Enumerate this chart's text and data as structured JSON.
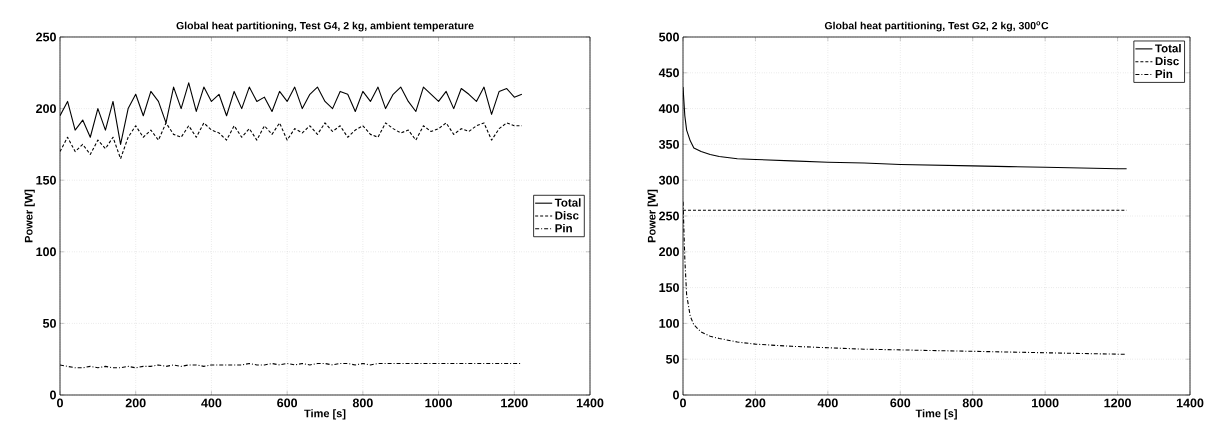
{
  "chart_data": [
    {
      "type": "line",
      "title": "Global heat partitioning, Test G4, 2 kg, ambient temperature",
      "xlabel": "Time [s]",
      "ylabel": "Power [W]",
      "xlim": [
        0,
        1400
      ],
      "ylim": [
        0,
        250
      ],
      "xticks": [
        0,
        200,
        400,
        600,
        800,
        1000,
        1200,
        1400
      ],
      "yticks": [
        0,
        50,
        100,
        150,
        200,
        250
      ],
      "grid": true,
      "legend": "right",
      "x": [
        0,
        20,
        40,
        60,
        80,
        100,
        120,
        140,
        160,
        180,
        200,
        220,
        240,
        260,
        280,
        300,
        320,
        340,
        360,
        380,
        400,
        420,
        440,
        460,
        480,
        500,
        520,
        540,
        560,
        580,
        600,
        620,
        640,
        660,
        680,
        700,
        720,
        740,
        760,
        780,
        800,
        820,
        840,
        860,
        880,
        900,
        920,
        940,
        960,
        980,
        1000,
        1020,
        1040,
        1060,
        1080,
        1100,
        1120,
        1140,
        1160,
        1180,
        1200,
        1220
      ],
      "series": [
        {
          "name": "Total",
          "color": "#000000",
          "line_style": "solid",
          "values": [
            195,
            205,
            185,
            192,
            180,
            200,
            185,
            205,
            175,
            200,
            210,
            195,
            212,
            205,
            190,
            215,
            200,
            218,
            198,
            215,
            205,
            210,
            195,
            212,
            200,
            215,
            205,
            208,
            198,
            212,
            205,
            215,
            200,
            210,
            215,
            205,
            200,
            212,
            210,
            198,
            212,
            205,
            215,
            200,
            210,
            215,
            205,
            198,
            215,
            210,
            205,
            212,
            200,
            214,
            210,
            205,
            215,
            196,
            212,
            214,
            208,
            210
          ]
        },
        {
          "name": "Disc",
          "color": "#000000",
          "line_style": "dashed",
          "values": [
            170,
            180,
            170,
            175,
            168,
            178,
            172,
            180,
            165,
            180,
            188,
            180,
            185,
            178,
            190,
            182,
            180,
            188,
            180,
            190,
            185,
            183,
            178,
            188,
            180,
            186,
            178,
            188,
            182,
            190,
            178,
            186,
            183,
            188,
            182,
            190,
            184,
            188,
            180,
            185,
            188,
            182,
            180,
            190,
            186,
            183,
            185,
            178,
            188,
            184,
            186,
            190,
            182,
            186,
            184,
            188,
            190,
            178,
            186,
            190,
            188,
            188
          ]
        },
        {
          "name": "Pin",
          "color": "#000000",
          "line_style": "dashdot",
          "values": [
            21,
            20,
            19,
            19,
            20,
            19,
            20,
            19,
            19,
            20,
            19,
            20,
            20,
            21,
            20,
            21,
            20,
            21,
            21,
            20,
            21,
            21,
            21,
            21,
            21,
            22,
            21,
            21,
            22,
            21,
            22,
            21,
            22,
            21,
            22,
            22,
            21,
            22,
            22,
            21,
            22,
            21,
            22,
            22,
            22,
            22,
            22,
            22,
            22,
            22,
            22,
            22,
            22,
            22,
            22,
            22,
            22,
            22,
            22,
            22,
            22,
            22
          ]
        }
      ]
    },
    {
      "type": "line",
      "title": "Global heat partitioning, Test G2, 2 kg, 300$^{o}$C",
      "xlabel": "Time [s]",
      "ylabel": "Power [W]",
      "xlim": [
        0,
        1400
      ],
      "ylim": [
        0,
        500
      ],
      "xticks": [
        0,
        200,
        400,
        600,
        800,
        1000,
        1200,
        1400
      ],
      "yticks": [
        0,
        50,
        100,
        150,
        200,
        250,
        300,
        350,
        400,
        450,
        500
      ],
      "grid": true,
      "legend": "top right",
      "x": [
        0,
        5,
        10,
        20,
        30,
        50,
        75,
        100,
        150,
        200,
        300,
        400,
        500,
        600,
        700,
        800,
        900,
        1000,
        1100,
        1200,
        1225
      ],
      "series": [
        {
          "name": "Total",
          "color": "#000000",
          "line_style": "solid",
          "values": [
            430,
            390,
            370,
            355,
            345,
            340,
            336,
            333,
            330,
            329,
            327,
            325,
            324,
            322,
            321,
            320,
            319,
            318,
            317,
            316,
            316
          ]
        },
        {
          "name": "Disc",
          "color": "#000000",
          "line_style": "dashed",
          "x": [
            0,
            1225
          ],
          "values": [
            258,
            258
          ]
        },
        {
          "name": "Pin",
          "color": "#000000",
          "line_style": "dashdot",
          "values": [
            270,
            190,
            140,
            110,
            98,
            88,
            82,
            79,
            74,
            71,
            68,
            66,
            64,
            63,
            62,
            61,
            60,
            59,
            58,
            57,
            57
          ]
        }
      ]
    }
  ]
}
